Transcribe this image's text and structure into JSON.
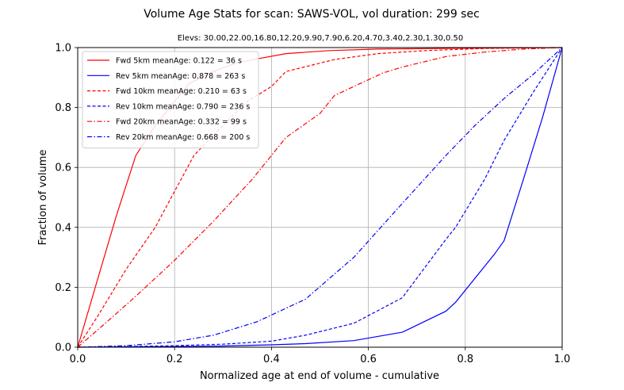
{
  "chart_data": {
    "type": "line",
    "title": "Volume Age Stats for scan: SAWS-VOL, vol duration: 299 sec",
    "subtitle": "Elevs: 30.00,22.00,16.80,12.20,9.90,7.90,6.20,4.70,3.40,2.30,1.30,0.50",
    "xlabel": "Normalized age at end of volume - cumulative",
    "ylabel": "Fraction of volume",
    "xlim": [
      0.0,
      1.0
    ],
    "ylim": [
      0.0,
      1.0
    ],
    "xticks": [
      "0.0",
      "0.2",
      "0.4",
      "0.6",
      "0.8",
      "1.0"
    ],
    "yticks": [
      "0.0",
      "0.2",
      "0.4",
      "0.6",
      "0.8",
      "1.0"
    ],
    "grid": true,
    "legend_position": "top-left",
    "series": [
      {
        "name": "Fwd  5km meanAge: 0.122 = 36 s",
        "color": "#ff0000",
        "dash": "solid",
        "points": [
          [
            0,
            0
          ],
          [
            0.04,
            0.22
          ],
          [
            0.08,
            0.44
          ],
          [
            0.12,
            0.64
          ],
          [
            0.16,
            0.74
          ],
          [
            0.2,
            0.82
          ],
          [
            0.23,
            0.88
          ],
          [
            0.28,
            0.92
          ],
          [
            0.33,
            0.95
          ],
          [
            0.38,
            0.965
          ],
          [
            0.43,
            0.98
          ],
          [
            0.52,
            0.99
          ],
          [
            0.62,
            0.995
          ],
          [
            0.8,
            0.998
          ],
          [
            1,
            1
          ]
        ]
      },
      {
        "name": "Rev  5km meanAge: 0.878 = 263 s",
        "color": "#0000ff",
        "dash": "solid",
        "points": [
          [
            0,
            0
          ],
          [
            0.1,
            0.001
          ],
          [
            0.2,
            0.002
          ],
          [
            0.3,
            0.004
          ],
          [
            0.4,
            0.008
          ],
          [
            0.47,
            0.012
          ],
          [
            0.57,
            0.022
          ],
          [
            0.67,
            0.05
          ],
          [
            0.76,
            0.12
          ],
          [
            0.78,
            0.15
          ],
          [
            0.86,
            0.31
          ],
          [
            0.88,
            0.355
          ],
          [
            0.92,
            0.56
          ],
          [
            0.96,
            0.77
          ],
          [
            1,
            1
          ]
        ]
      },
      {
        "name": "Fwd 10km meanAge: 0.210 = 63 s",
        "color": "#ff0000",
        "dash": "dashed",
        "points": [
          [
            0,
            0
          ],
          [
            0.04,
            0.1
          ],
          [
            0.1,
            0.26
          ],
          [
            0.16,
            0.4
          ],
          [
            0.2,
            0.52
          ],
          [
            0.24,
            0.64
          ],
          [
            0.3,
            0.74
          ],
          [
            0.35,
            0.82
          ],
          [
            0.4,
            0.87
          ],
          [
            0.43,
            0.92
          ],
          [
            0.48,
            0.94
          ],
          [
            0.53,
            0.96
          ],
          [
            0.62,
            0.98
          ],
          [
            0.72,
            0.99
          ],
          [
            0.84,
            0.997
          ],
          [
            1,
            1
          ]
        ]
      },
      {
        "name": "Rev 10km meanAge: 0.790 = 236 s",
        "color": "#0000ff",
        "dash": "dashed",
        "points": [
          [
            0,
            0
          ],
          [
            0.1,
            0.002
          ],
          [
            0.2,
            0.005
          ],
          [
            0.3,
            0.01
          ],
          [
            0.4,
            0.02
          ],
          [
            0.47,
            0.04
          ],
          [
            0.57,
            0.08
          ],
          [
            0.67,
            0.165
          ],
          [
            0.76,
            0.36
          ],
          [
            0.78,
            0.4
          ],
          [
            0.84,
            0.56
          ],
          [
            0.88,
            0.69
          ],
          [
            0.94,
            0.85
          ],
          [
            1,
            1
          ]
        ]
      },
      {
        "name": "Fwd 20km meanAge: 0.332 = 99 s",
        "color": "#ff0000",
        "dash": "dashdot",
        "points": [
          [
            0,
            0
          ],
          [
            0.05,
            0.07
          ],
          [
            0.12,
            0.17
          ],
          [
            0.2,
            0.29
          ],
          [
            0.28,
            0.42
          ],
          [
            0.36,
            0.56
          ],
          [
            0.43,
            0.7
          ],
          [
            0.5,
            0.78
          ],
          [
            0.53,
            0.84
          ],
          [
            0.57,
            0.87
          ],
          [
            0.63,
            0.915
          ],
          [
            0.67,
            0.935
          ],
          [
            0.76,
            0.97
          ],
          [
            0.84,
            0.985
          ],
          [
            0.92,
            0.995
          ],
          [
            1,
            1
          ]
        ]
      },
      {
        "name": "Rev 20km meanAge: 0.668 = 200 s",
        "color": "#0000ff",
        "dash": "dashdot",
        "points": [
          [
            0,
            0
          ],
          [
            0.1,
            0.005
          ],
          [
            0.2,
            0.018
          ],
          [
            0.28,
            0.04
          ],
          [
            0.37,
            0.085
          ],
          [
            0.47,
            0.16
          ],
          [
            0.57,
            0.3
          ],
          [
            0.67,
            0.48
          ],
          [
            0.76,
            0.64
          ],
          [
            0.82,
            0.74
          ],
          [
            0.88,
            0.83
          ],
          [
            0.94,
            0.91
          ],
          [
            1,
            1
          ]
        ]
      }
    ]
  }
}
